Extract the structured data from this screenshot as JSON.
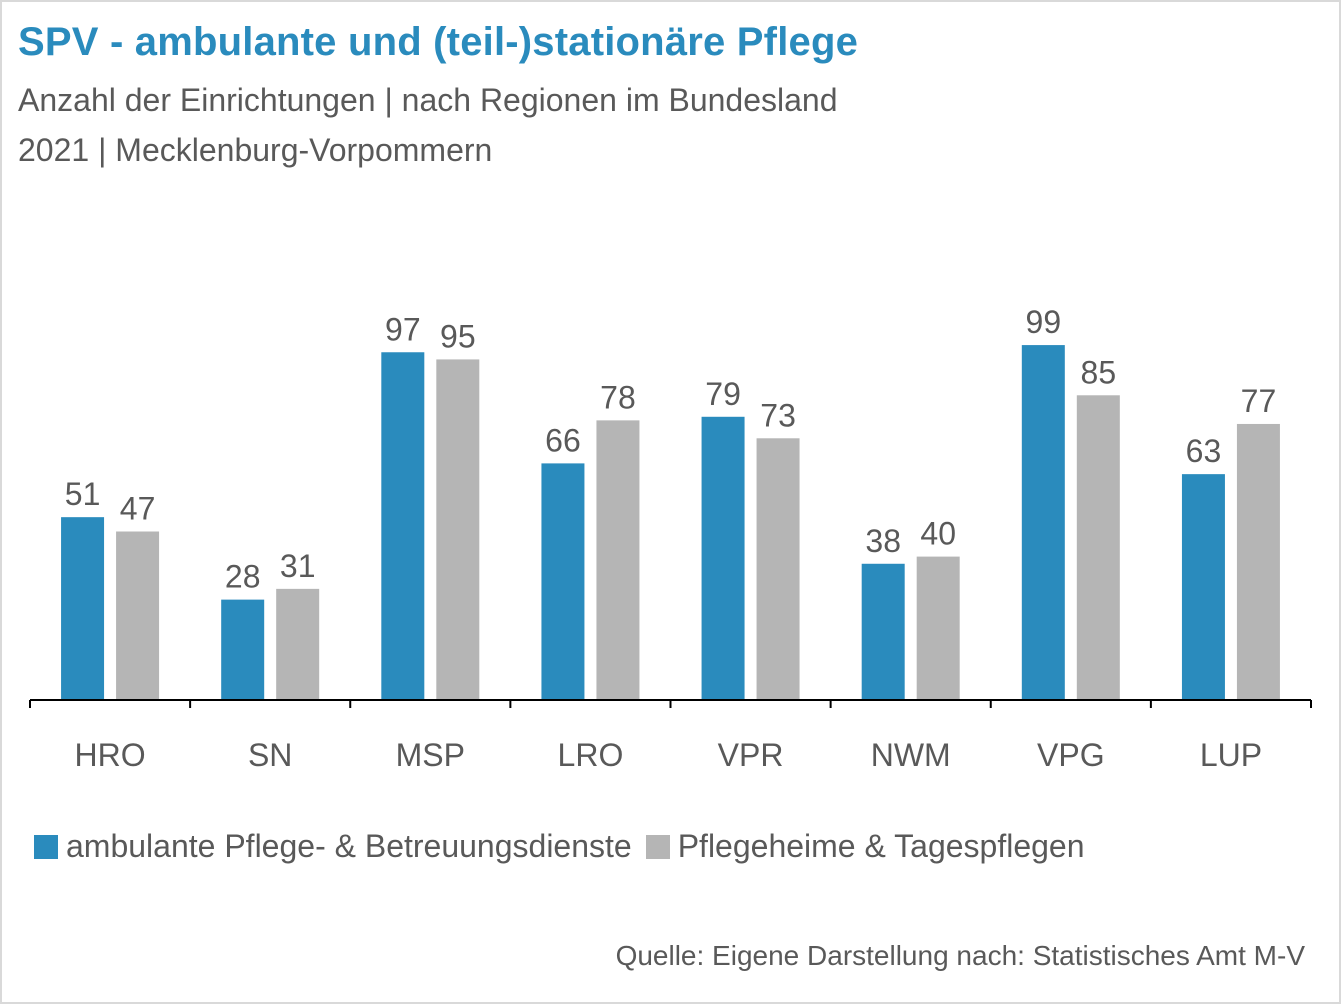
{
  "title": "SPV - ambulante und (teil-)stationäre Pflege",
  "subtitle_line1": "Anzahl der Einrichtungen | nach Regionen im Bundesland",
  "subtitle_line2": "2021 | Mecklenburg-Vorpommern",
  "source": "Quelle: Eigene Darstellung nach: Statistisches Amt M-V",
  "colors": {
    "ambulant": "#2a8bbd",
    "stationaer": "#b5b5b5",
    "axis": "#000000",
    "label": "#595959"
  },
  "chart_data": {
    "type": "bar",
    "title": "SPV - ambulante und (teil-)stationäre Pflege",
    "categories": [
      "HRO",
      "SN",
      "MSP",
      "LRO",
      "VPR",
      "NWM",
      "VPG",
      "LUP"
    ],
    "series": [
      {
        "name": "ambulante Pflege- & Betreuungsdienste",
        "values": [
          51,
          28,
          97,
          66,
          79,
          38,
          99,
          63
        ]
      },
      {
        "name": "Pflegeheime & Tagespflegen",
        "values": [
          47,
          31,
          95,
          78,
          73,
          40,
          85,
          77
        ]
      }
    ],
    "ylim": [
      0,
      100
    ],
    "grid": false,
    "data_labels": true,
    "legend_position": "bottom"
  }
}
